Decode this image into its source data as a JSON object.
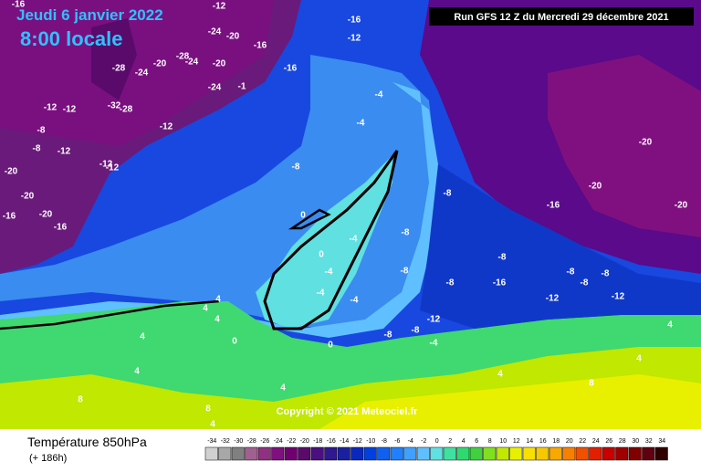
{
  "header": {
    "date": "Jeudi 6 janvier 2022",
    "time": "8:00 locale",
    "run": "Run GFS 12 Z du Mercredi 29 décembre 2021"
  },
  "copyright": "Copyright © 2021 Meteociel.fr",
  "legend": {
    "title": "Température 850hPa",
    "subtitle": "(+ 186h)",
    "ticks": [
      -34,
      -32,
      -30,
      -28,
      -26,
      -24,
      -22,
      -20,
      -18,
      -16,
      -14,
      -12,
      -10,
      -8,
      -6,
      -4,
      -2,
      0,
      2,
      4,
      6,
      8,
      10,
      12,
      14,
      16,
      18,
      20,
      22,
      24,
      26,
      28,
      30,
      32,
      34
    ],
    "colors": [
      "#d0d0d0",
      "#a8a8a8",
      "#808080",
      "#a06090",
      "#903080",
      "#801080",
      "#700070",
      "#5a0a6a",
      "#4a1080",
      "#301890",
      "#1a20a0",
      "#0a28c0",
      "#0040e0",
      "#1060f0",
      "#2080ff",
      "#40a0ff",
      "#60c0ff",
      "#60e0e0",
      "#40e0a0",
      "#30d870",
      "#40d040",
      "#80e020",
      "#c0e800",
      "#e8f000",
      "#f8e000",
      "#f8c800",
      "#f8a800",
      "#f88000",
      "#f05000",
      "#e02000",
      "#c80000",
      "#a00000",
      "#800000",
      "#600010",
      "#300000"
    ]
  },
  "map_labels": [
    "-16",
    "-12",
    "-16",
    "-24",
    "-20",
    "-12",
    "-16",
    "-20",
    "-28",
    "-24",
    "-20",
    "-24",
    "-16",
    "-28",
    "-24",
    "-1",
    "-12",
    "-12",
    "-32",
    "-28",
    "-12",
    "-8",
    "-12",
    "-12",
    "-12",
    "-8",
    "-20",
    "-20",
    "-20",
    "-16",
    "-16",
    "-4",
    "-4",
    "-8",
    "-20",
    "-20",
    "-20",
    "-8",
    "-16",
    "-8",
    "0",
    "0",
    "-4",
    "-4",
    "-4",
    "-4",
    "-8",
    "-8",
    "-8",
    "-8",
    "-16",
    "-8",
    "-8",
    "-12",
    "-12",
    "4",
    "4",
    "4",
    "0",
    "0",
    "-8",
    "-8",
    "-12",
    "-4",
    "4",
    "4",
    "4",
    "8",
    "8",
    "4",
    "4",
    "4",
    "4",
    "8"
  ]
}
